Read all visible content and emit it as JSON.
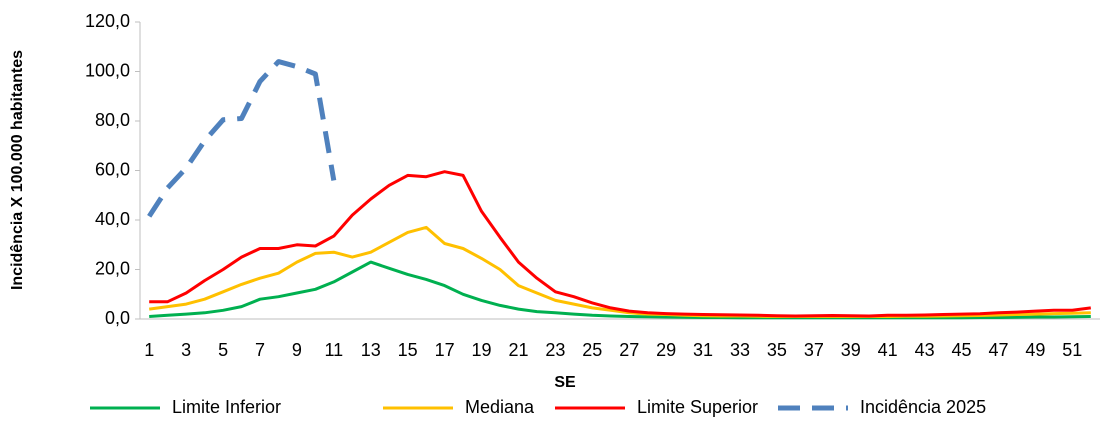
{
  "chart_data": {
    "type": "line",
    "x_label": "SE",
    "y_label": "Incidência X 100.000 habitantes",
    "categories": [
      1,
      null,
      3,
      null,
      5,
      null,
      7,
      null,
      9,
      null,
      11,
      null,
      13,
      null,
      15,
      null,
      17,
      null,
      19,
      null,
      21,
      null,
      23,
      null,
      25,
      null,
      27,
      null,
      29,
      null,
      31,
      null,
      33,
      null,
      35,
      null,
      37,
      null,
      39,
      null,
      41,
      null,
      43,
      null,
      45,
      null,
      47,
      null,
      49,
      null,
      51,
      null
    ],
    "ylim": [
      0,
      120
    ],
    "yticks": [
      {
        "value": 0,
        "label": "0,0"
      },
      {
        "value": 20,
        "label": "20,0"
      },
      {
        "value": 40,
        "label": "40,0"
      },
      {
        "value": 60,
        "label": "60,0"
      },
      {
        "value": 80,
        "label": "80,0"
      },
      {
        "value": 100,
        "label": "100,0"
      },
      {
        "value": 120,
        "label": "120,0"
      }
    ],
    "grid": false,
    "legend": "bottom",
    "series": [
      {
        "name": "Limite Inferior",
        "color": "#00b050",
        "dash": false,
        "values": [
          1,
          1.5,
          2,
          2.5,
          3.5,
          5,
          8,
          9,
          10.5,
          12,
          15,
          19,
          23,
          20.5,
          18,
          16,
          13.5,
          10,
          7.5,
          5.5,
          4,
          3,
          2.5,
          2,
          1.5,
          1.2,
          1,
          0.9,
          0.8,
          0.7,
          0.6,
          0.6,
          0.5,
          0.5,
          0.5,
          0.5,
          0.5,
          0.5,
          0.5,
          0.5,
          0.5,
          0.5,
          0.5,
          0.5,
          0.5,
          0.6,
          0.6,
          0.7,
          0.8,
          0.8,
          0.9,
          1
        ]
      },
      {
        "name": "Mediana",
        "color": "#ffc000",
        "dash": false,
        "values": [
          4,
          5,
          6,
          8,
          11,
          14,
          16.5,
          18.5,
          23,
          26.5,
          27,
          25,
          27,
          31,
          35,
          37,
          30.5,
          28.5,
          24.5,
          20,
          13.5,
          10.5,
          7.5,
          6,
          4.5,
          3.5,
          2.5,
          2,
          1.8,
          1.5,
          1.3,
          1.2,
          1.2,
          1.1,
          1,
          1,
          1,
          1,
          1,
          1,
          1,
          1.1,
          1.1,
          1.2,
          1.3,
          1.4,
          1.6,
          1.8,
          2,
          2.2,
          2.3,
          2.5
        ]
      },
      {
        "name": "Limite Superior",
        "color": "#ff0000",
        "dash": false,
        "values": [
          7,
          7,
          10.5,
          15.5,
          20,
          25,
          28.5,
          28.5,
          30,
          29.5,
          33.5,
          42,
          48.5,
          54,
          58,
          57.5,
          59.5,
          58,
          43.5,
          33,
          23,
          16.5,
          11,
          9,
          6.5,
          4.5,
          3.2,
          2.5,
          2.2,
          2,
          1.8,
          1.7,
          1.6,
          1.5,
          1.3,
          1.2,
          1.3,
          1.4,
          1.3,
          1.2,
          1.5,
          1.5,
          1.6,
          1.8,
          2,
          2.1,
          2.5,
          2.8,
          3.2,
          3.5,
          3.5,
          4.5
        ]
      },
      {
        "name": "Incidência 2025",
        "color": "#4f81bd",
        "dash": true,
        "values": [
          41.5,
          53,
          61,
          72,
          80.5,
          81,
          96,
          104,
          102,
          99,
          56,
          null,
          null,
          null,
          null,
          null,
          null,
          null,
          null,
          null,
          null,
          null,
          null,
          null,
          null,
          null,
          null,
          null,
          null,
          null,
          null,
          null,
          null,
          null,
          null,
          null,
          null,
          null,
          null,
          null,
          null,
          null,
          null,
          null,
          null,
          null,
          null,
          null,
          null,
          null,
          null,
          null
        ]
      }
    ]
  }
}
